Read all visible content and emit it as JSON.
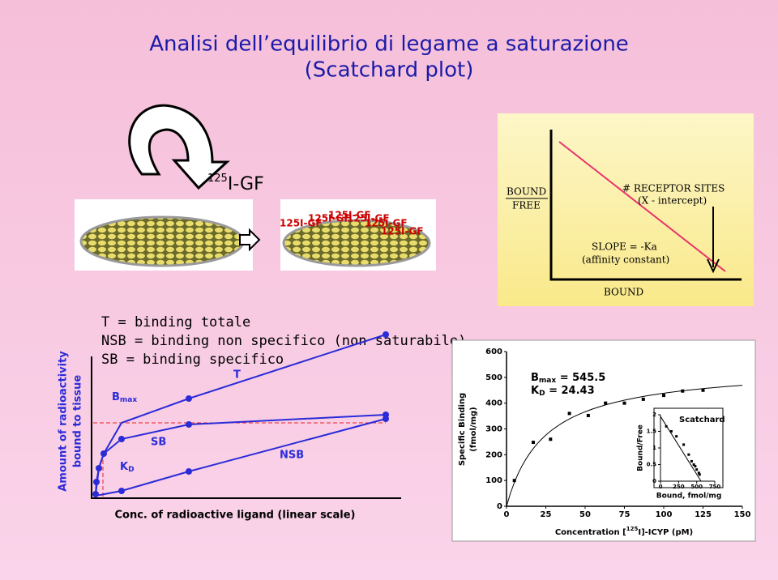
{
  "title": [
    "Analisi dell’equilibrio di legame a saturazione",
    "(Scatchard plot)"
  ],
  "ligand_label": {
    "sup": "125",
    "text": "I-GF"
  },
  "dish_labels": [
    "125I-GF",
    "125I-GF",
    "125I-GF",
    "125I-GF",
    "125I-GF",
    "125I-GF"
  ],
  "scheme": {
    "y_label": [
      "BOUND",
      "FREE"
    ],
    "x_label": "BOUND",
    "intercept": [
      "# RECEPTOR SITES",
      "(X - intercept)"
    ],
    "slope": [
      "SLOPE = -Ka",
      "(affinity constant)"
    ]
  },
  "legend_lines": [
    "T = binding totale",
    "NSB = binding non specifico (non saturabile)",
    "SB = binding specifico"
  ],
  "saturation": {
    "y_label": [
      "Amount of radioactivity",
      "bound to tissue"
    ],
    "x_label": "Conc. of radioactive ligand (linear scale)",
    "bmax": {
      "main": "B",
      "sub": "max"
    },
    "kd": {
      "main": "K",
      "sub": "D"
    },
    "curves": [
      "T",
      "SB",
      "NSB"
    ]
  },
  "chart_data": [
    {
      "type": "scatter",
      "y_label": [
        "Specific Binding",
        "(fmol/mg)"
      ],
      "x_label": [
        "Concentration [",
        "125",
        "I]-ICYP (pM)"
      ],
      "x": [
        5,
        17,
        28,
        40,
        52,
        63,
        75,
        87,
        100,
        112,
        125
      ],
      "values": [
        100,
        248,
        260,
        360,
        352,
        400,
        400,
        415,
        430,
        447,
        450
      ],
      "xlim": [
        0,
        150
      ],
      "xticks": [
        0,
        25,
        50,
        75,
        100,
        125,
        150
      ],
      "ylim": [
        0,
        600
      ],
      "yticks": [
        0,
        100,
        200,
        300,
        400,
        500,
        600
      ],
      "fit": {
        "bmax_main": "B",
        "bmax_sub": "max",
        "bmax": 545.5,
        "kd_main": "K",
        "kd_sub": "D",
        "kd": 24.43,
        "equals": " = "
      }
    },
    {
      "type": "scatter",
      "title": "Scatchard",
      "x_label": "Bound, fmol/mg",
      "y_label": "Bound/Free",
      "x": [
        80,
        150,
        220,
        320,
        390,
        430,
        460,
        480,
        500,
        530,
        540
      ],
      "values": [
        1.65,
        1.5,
        1.35,
        1.1,
        0.8,
        0.6,
        0.5,
        0.45,
        0.35,
        0.25,
        0.2
      ],
      "xlim": [
        0,
        750
      ],
      "xticks": [
        0,
        250,
        500,
        750
      ],
      "ylim": [
        0,
        2
      ],
      "yticks": [
        0,
        0.5,
        1,
        1.5,
        2
      ],
      "fit_line": {
        "x": [
          0,
          560
        ],
        "values": [
          1.95,
          0
        ]
      }
    }
  ]
}
